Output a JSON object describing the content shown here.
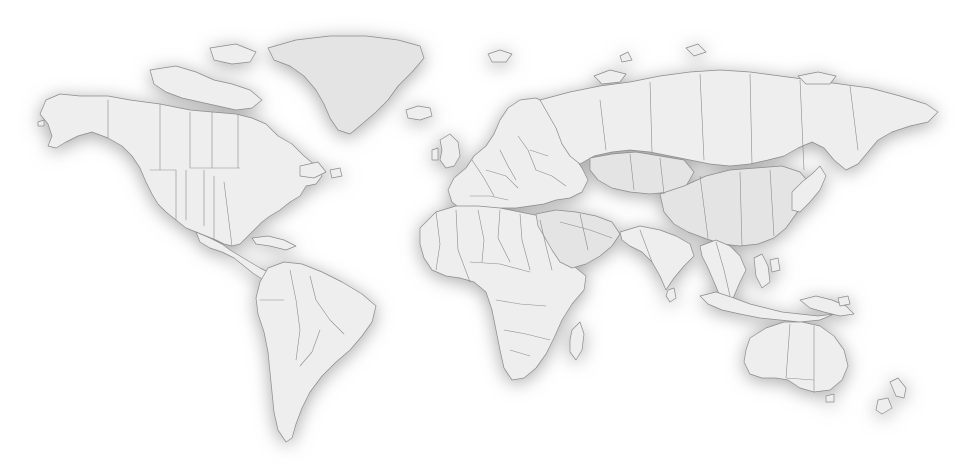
{
  "map": {
    "style": "grey world political map with soft drop shadow",
    "colors": {
      "background": "#ffffff",
      "land_light": "#eeeeee",
      "land_mid": "#e4e4e4",
      "land_dark": "#d6d6d6",
      "border": "#8c8c8c",
      "shadow": "#9a9a9a"
    },
    "regions": [
      {
        "id": "north-america",
        "label": "",
        "shade": "land_light"
      },
      {
        "id": "greenland",
        "label": "",
        "shade": "land_mid"
      },
      {
        "id": "arctic-islands",
        "label": "",
        "shade": "land_light"
      },
      {
        "id": "central-america",
        "label": "",
        "shade": "land_light"
      },
      {
        "id": "south-america",
        "label": "",
        "shade": "land_light"
      },
      {
        "id": "europe",
        "label": "",
        "shade": "land_light"
      },
      {
        "id": "iceland",
        "label": "",
        "shade": "land_light"
      },
      {
        "id": "british-isles",
        "label": "",
        "shade": "land_light"
      },
      {
        "id": "africa",
        "label": "",
        "shade": "land_light"
      },
      {
        "id": "madagascar",
        "label": "",
        "shade": "land_light"
      },
      {
        "id": "arabia",
        "label": "",
        "shade": "land_mid"
      },
      {
        "id": "russia",
        "label": "",
        "shade": "land_light"
      },
      {
        "id": "kazakhstan",
        "label": "",
        "shade": "land_mid"
      },
      {
        "id": "china-mongolia",
        "label": "",
        "shade": "land_mid"
      },
      {
        "id": "india",
        "label": "",
        "shade": "land_light"
      },
      {
        "id": "southeast-asia",
        "label": "",
        "shade": "land_light"
      },
      {
        "id": "japan",
        "label": "",
        "shade": "land_light"
      },
      {
        "id": "indonesia",
        "label": "",
        "shade": "land_light"
      },
      {
        "id": "new-guinea",
        "label": "",
        "shade": "land_light"
      },
      {
        "id": "australia",
        "label": "",
        "shade": "land_light"
      },
      {
        "id": "new-zealand",
        "label": "",
        "shade": "land_light"
      },
      {
        "id": "sri-lanka",
        "label": "",
        "shade": "land_light"
      },
      {
        "id": "philippines",
        "label": "",
        "shade": "land_light"
      },
      {
        "id": "caribbean",
        "label": "",
        "shade": "land_light"
      }
    ]
  }
}
